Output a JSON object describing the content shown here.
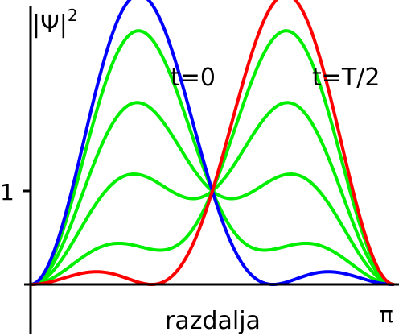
{
  "chart_data": {
    "type": "line",
    "ylabel": "|Ψ|²",
    "ylabel_base": "|Ψ|",
    "ylabel_exp": "2",
    "xlabel": "razdalja",
    "x_tick_end": "π",
    "y_tick": 1,
    "xlim": [
      0,
      3.14159
    ],
    "ylim": [
      0,
      2.4
    ],
    "annotations": [
      {
        "text": "t=0",
        "series": "t=0"
      },
      {
        "text": "t=T/2",
        "series": "t=T/2"
      }
    ],
    "curves": [
      {
        "phase_cos": 1.0,
        "color": "#0000ff",
        "label": "t=0"
      },
      {
        "phase_cos": 0.75,
        "color": "#00ee00"
      },
      {
        "phase_cos": 0.25,
        "color": "#00ee00"
      },
      {
        "phase_cos": -0.25,
        "color": "#00ee00"
      },
      {
        "phase_cos": -0.75,
        "color": "#00ee00"
      },
      {
        "phase_cos": -1.0,
        "color": "#ff0000",
        "label": "t=T/2"
      }
    ],
    "model": "|Ψ|² = sin²x + sin²2x + 2·sin x·sin 2x·cos(ωt)"
  }
}
